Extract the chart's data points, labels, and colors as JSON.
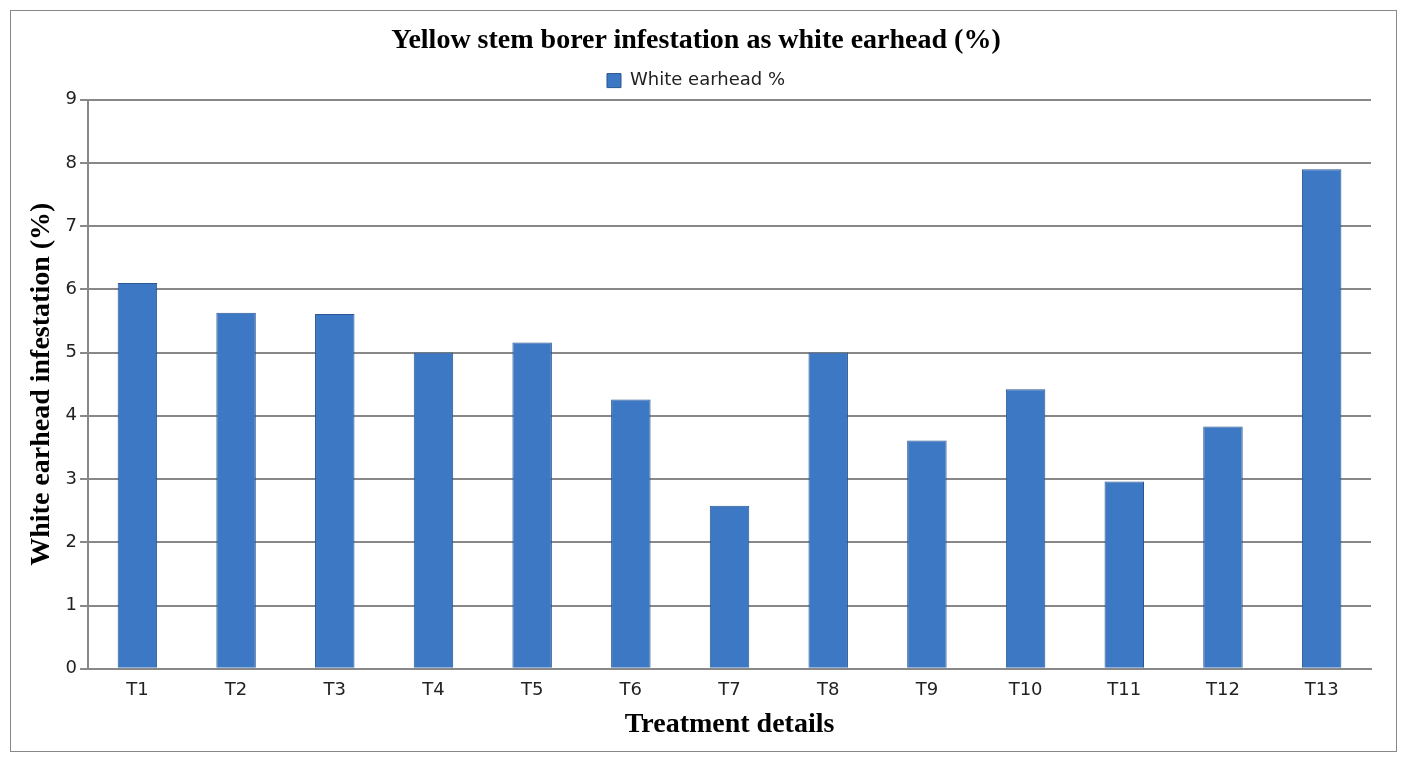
{
  "chart_data": {
    "type": "bar",
    "title": "Yellow stem borer infestation as white earhead (%)",
    "xlabel": "Treatment details",
    "ylabel": "White earhead infestation (%)",
    "categories": [
      "T1",
      "T2",
      "T3",
      "T4",
      "T5",
      "T6",
      "T7",
      "T8",
      "T9",
      "T10",
      "T11",
      "T12",
      "T13"
    ],
    "series": [
      {
        "name": "White earhead %",
        "color": "#3c78c3",
        "values": [
          6.1,
          5.63,
          5.61,
          5.0,
          5.16,
          4.26,
          2.58,
          5.0,
          3.61,
          4.42,
          2.96,
          3.83,
          7.9
        ]
      }
    ],
    "ylim": [
      0,
      9
    ],
    "yticks": [
      0,
      1,
      2,
      3,
      4,
      5,
      6,
      7,
      8,
      9
    ],
    "grid": "y",
    "legend": "top"
  }
}
